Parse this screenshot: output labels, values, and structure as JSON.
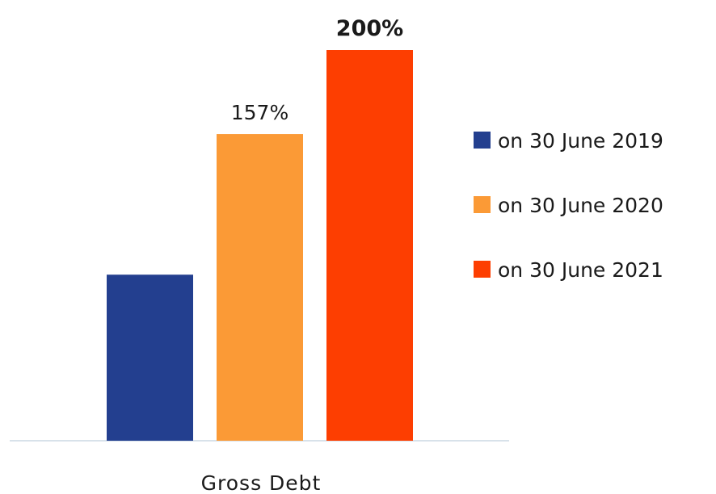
{
  "chart_data": {
    "type": "bar",
    "categories": [
      "Gross Debt"
    ],
    "series": [
      {
        "name": "on 30 June 2019",
        "values": [
          0.85
        ],
        "color": "#233f8f",
        "label": ""
      },
      {
        "name": "on 30 June 2020",
        "values": [
          1.57
        ],
        "color": "#fb9a36",
        "label": "157%"
      },
      {
        "name": "on 30 June 2021",
        "values": [
          2.0
        ],
        "color": "#fd3e01",
        "label": "200%",
        "label_bold": true
      }
    ],
    "title": "",
    "xlabel": "",
    "ylabel": "",
    "ylim": [
      0,
      2.0
    ],
    "grid": false,
    "legend_position": "right"
  }
}
